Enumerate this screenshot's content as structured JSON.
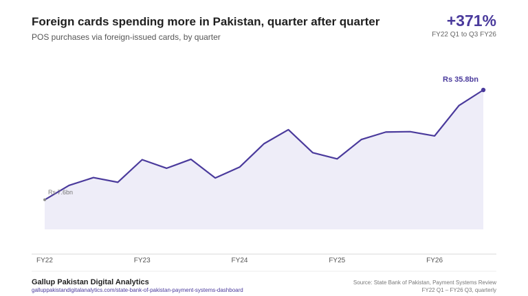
{
  "header": {
    "title": "Foreign cards spending more in Pakistan, quarter after quarter",
    "subtitle": "POS purchases via foreign-issued cards, by quarter"
  },
  "kpi": {
    "value": "+371%",
    "caption": "FY22 Q1 to Q3 FY26"
  },
  "footer": {
    "brand": "Gallup Pakistan Digital Analytics",
    "link": "galluppakistandigitalanalytics.com/state-bank-of-pakistan-payment-systems-dashboard",
    "source": "Source: State Bank of Pakistan, Payment Systems Review",
    "range": "FY22 Q1 – FY26 Q3, quarterly"
  },
  "colors": {
    "line": "#4a3a9c",
    "area": "#eeedf8",
    "axis": "#d9d9d9"
  },
  "chart_data": {
    "type": "area",
    "x": [
      "FY22 Q1",
      "FY22 Q2",
      "FY22 Q3",
      "FY22 Q4",
      "FY23 Q1",
      "FY23 Q2",
      "FY23 Q3",
      "FY23 Q4",
      "FY24 Q1",
      "FY24 Q2",
      "FY24 Q3",
      "FY24 Q4",
      "FY25 Q1",
      "FY25 Q2",
      "FY25 Q3",
      "FY25 Q4",
      "FY26 Q1",
      "FY26 Q2",
      "FY26 Q3"
    ],
    "values": [
      7.6,
      11.3,
      13.3,
      12.1,
      17.9,
      15.7,
      18.0,
      13.2,
      16.0,
      22.0,
      25.6,
      19.7,
      18.1,
      23.1,
      25.0,
      25.1,
      24.0,
      31.8,
      35.8
    ],
    "xticks": [
      "FY22",
      "FY23",
      "FY24",
      "FY25",
      "FY26"
    ],
    "ylim": [
      0,
      38
    ],
    "annotations": {
      "start_label": "Rs 7.6bn",
      "end_label": "Rs 35.8bn"
    },
    "grid": false
  }
}
